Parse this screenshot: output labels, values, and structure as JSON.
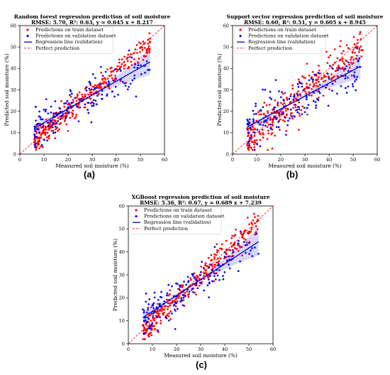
{
  "chart_data": [
    {
      "type": "scatter",
      "panel_label": "(a)",
      "title": "Random forest regression prediction of soil moisture",
      "subtitle": "RMSE: 5.70, R²: 0.63, y = 0.645 x + 8.217",
      "xlabel": "Measured soil moisture (%)",
      "ylabel": "Predicted soil moisture (%)",
      "xlim": [
        0,
        60
      ],
      "ylim": [
        0,
        60
      ],
      "xticks": [
        "0",
        "10",
        "20",
        "30",
        "40",
        "50",
        "60"
      ],
      "yticks": [
        "0",
        "10",
        "20",
        "30",
        "40",
        "50",
        "60"
      ],
      "legend_position": "top-left",
      "regression": {
        "slope": 0.645,
        "intercept": 8.217,
        "x_range": [
          6,
          54
        ]
      },
      "spread": {
        "train": 2.6,
        "validation": 4.5
      },
      "series": [
        {
          "name": "Predictions on train dataset",
          "color": "#ff0000",
          "kind": "points",
          "n": 330
        },
        {
          "name": "Predictions on validation dataset",
          "color": "#0000ff",
          "kind": "points",
          "n": 160
        },
        {
          "name": "Regression line (validation)",
          "color": "#0000cc",
          "kind": "line"
        },
        {
          "name": "Perfect prediction",
          "color": "#ff0000",
          "kind": "dashed-line"
        }
      ]
    },
    {
      "type": "scatter",
      "panel_label": "(b)",
      "title": "Support vector regression prediction of soil moisture",
      "subtitle": "RMSE: 6.60, R²: 0.51, y = 0.605 x + 8.945",
      "xlabel": "Measured soil moisture (%)",
      "ylabel": "Predicted soil moisture (%)",
      "xlim": [
        0,
        60
      ],
      "ylim": [
        0,
        60
      ],
      "xticks": [
        "0",
        "10",
        "20",
        "30",
        "40",
        "50",
        "60"
      ],
      "yticks": [
        "0",
        "10",
        "20",
        "30",
        "40",
        "50",
        "60"
      ],
      "legend_position": "top-left",
      "regression": {
        "slope": 0.605,
        "intercept": 8.945,
        "x_range": [
          6,
          53
        ]
      },
      "spread": {
        "train": 5.0,
        "validation": 5.5
      },
      "series": [
        {
          "name": "Predictions on train dataset",
          "color": "#ff0000",
          "kind": "points",
          "n": 330
        },
        {
          "name": "Predictions on validation dataset",
          "color": "#0000ff",
          "kind": "points",
          "n": 160
        },
        {
          "name": "Regression line (validation)",
          "color": "#0000cc",
          "kind": "line"
        },
        {
          "name": "Perfect prediction",
          "color": "#ff0000",
          "kind": "dashed-line"
        }
      ]
    },
    {
      "type": "scatter",
      "panel_label": "(c)",
      "title": "XGBoost regression prediction of soil moisture",
      "subtitle": "RMSE: 5.36, R²: 0.67, y = 0.689 x + 7.239",
      "xlabel": "Measured soil moisture (%)",
      "ylabel": "Predicted soil moisture (%)",
      "xlim": [
        0,
        60
      ],
      "ylim": [
        0,
        60
      ],
      "xticks": [
        "0",
        "10",
        "20",
        "30",
        "40",
        "50",
        "60"
      ],
      "yticks": [
        "0",
        "10",
        "20",
        "30",
        "40",
        "50",
        "60"
      ],
      "legend_position": "top-left",
      "regression": {
        "slope": 0.689,
        "intercept": 7.239,
        "x_range": [
          6,
          54
        ]
      },
      "spread": {
        "train": 2.8,
        "validation": 4.3
      },
      "series": [
        {
          "name": "Predictions on train dataset",
          "color": "#ff0000",
          "kind": "points",
          "n": 330
        },
        {
          "name": "Predictions on validation dataset",
          "color": "#0000ff",
          "kind": "points",
          "n": 160
        },
        {
          "name": "Regression line (validation)",
          "color": "#0000cc",
          "kind": "line"
        },
        {
          "name": "Perfect prediction",
          "color": "#ff0000",
          "kind": "dashed-line"
        }
      ]
    }
  ]
}
